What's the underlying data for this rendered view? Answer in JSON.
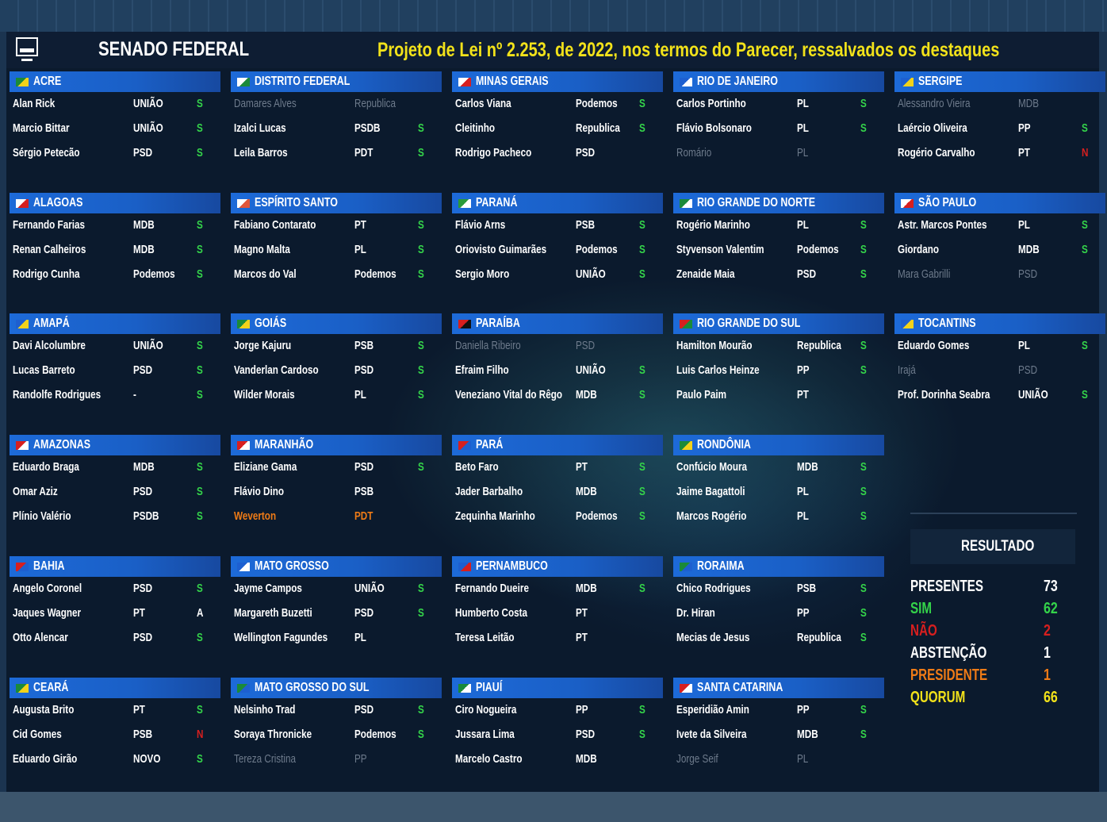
{
  "header": {
    "app_title": "SENADO FEDERAL",
    "bill": "Projeto de Lei nº 2.253, de 2022, nos termos do Parecer, ressalvados os destaques"
  },
  "colors": {
    "vote_yes": "#34d34a",
    "vote_no": "#d71f1f",
    "absent": "#6e7b8c",
    "president": "#ef7b16",
    "quorum": "#f2e21a",
    "state_bar": "#1d6ad8"
  },
  "states": [
    {
      "name": "ACRE",
      "senators": [
        {
          "name": "Alan Rick",
          "party": "UNIÃO",
          "vote": "S",
          "status": "present"
        },
        {
          "name": "Marcio Bittar",
          "party": "UNIÃO",
          "vote": "S",
          "status": "present"
        },
        {
          "name": "Sérgio Petecão",
          "party": "PSD",
          "vote": "S",
          "status": "present"
        }
      ]
    },
    {
      "name": "DISTRITO FEDERAL",
      "senators": [
        {
          "name": "Damares Alves",
          "party": "Republica",
          "vote": "",
          "status": "absent"
        },
        {
          "name": "Izalci Lucas",
          "party": "PSDB",
          "vote": "S",
          "status": "present"
        },
        {
          "name": "Leila Barros",
          "party": "PDT",
          "vote": "S",
          "status": "present"
        }
      ]
    },
    {
      "name": "MINAS GERAIS",
      "senators": [
        {
          "name": "Carlos Viana",
          "party": "Podemos",
          "vote": "S",
          "status": "present"
        },
        {
          "name": "Cleitinho",
          "party": "Republica",
          "vote": "S",
          "status": "present"
        },
        {
          "name": "Rodrigo Pacheco",
          "party": "PSD",
          "vote": "",
          "status": "present"
        }
      ]
    },
    {
      "name": "RIO DE JANEIRO",
      "senators": [
        {
          "name": "Carlos Portinho",
          "party": "PL",
          "vote": "S",
          "status": "present"
        },
        {
          "name": "Flávio Bolsonaro",
          "party": "PL",
          "vote": "S",
          "status": "present"
        },
        {
          "name": "Romário",
          "party": "PL",
          "vote": "",
          "status": "absent"
        }
      ]
    },
    {
      "name": "SERGIPE",
      "senators": [
        {
          "name": "Alessandro Vieira",
          "party": "MDB",
          "vote": "",
          "status": "absent"
        },
        {
          "name": "Laércio Oliveira",
          "party": "PP",
          "vote": "S",
          "status": "present"
        },
        {
          "name": "Rogério Carvalho",
          "party": "PT",
          "vote": "N",
          "status": "present"
        }
      ]
    },
    {
      "name": "ALAGOAS",
      "senators": [
        {
          "name": "Fernando Farias",
          "party": "MDB",
          "vote": "S",
          "status": "present"
        },
        {
          "name": "Renan Calheiros",
          "party": "MDB",
          "vote": "S",
          "status": "present"
        },
        {
          "name": "Rodrigo Cunha",
          "party": "Podemos",
          "vote": "S",
          "status": "present"
        }
      ]
    },
    {
      "name": "ESPÍRITO SANTO",
      "senators": [
        {
          "name": "Fabiano Contarato",
          "party": "PT",
          "vote": "S",
          "status": "present"
        },
        {
          "name": "Magno Malta",
          "party": "PL",
          "vote": "S",
          "status": "present"
        },
        {
          "name": "Marcos do Val",
          "party": "Podemos",
          "vote": "S",
          "status": "present"
        }
      ]
    },
    {
      "name": "PARANÁ",
      "senators": [
        {
          "name": "Flávio Arns",
          "party": "PSB",
          "vote": "S",
          "status": "present"
        },
        {
          "name": "Oriovisto Guimarães",
          "party": "Podemos",
          "vote": "S",
          "status": "present"
        },
        {
          "name": "Sergio Moro",
          "party": "UNIÃO",
          "vote": "S",
          "status": "present"
        }
      ]
    },
    {
      "name": "RIO GRANDE DO NORTE",
      "senators": [
        {
          "name": "Rogério Marinho",
          "party": "PL",
          "vote": "S",
          "status": "present"
        },
        {
          "name": "Styvenson Valentim",
          "party": "Podemos",
          "vote": "S",
          "status": "present"
        },
        {
          "name": "Zenaide Maia",
          "party": "PSD",
          "vote": "S",
          "status": "present"
        }
      ]
    },
    {
      "name": "SÃO PAULO",
      "senators": [
        {
          "name": "Astr. Marcos Pontes",
          "party": "PL",
          "vote": "S",
          "status": "present"
        },
        {
          "name": "Giordano",
          "party": "MDB",
          "vote": "S",
          "status": "present"
        },
        {
          "name": "Mara Gabrilli",
          "party": "PSD",
          "vote": "",
          "status": "absent"
        }
      ]
    },
    {
      "name": "AMAPÁ",
      "senators": [
        {
          "name": "Davi Alcolumbre",
          "party": "UNIÃO",
          "vote": "S",
          "status": "present"
        },
        {
          "name": "Lucas Barreto",
          "party": "PSD",
          "vote": "S",
          "status": "present"
        },
        {
          "name": "Randolfe Rodrigues",
          "party": "-",
          "vote": "S",
          "status": "present"
        }
      ]
    },
    {
      "name": "GOIÁS",
      "senators": [
        {
          "name": "Jorge Kajuru",
          "party": "PSB",
          "vote": "S",
          "status": "present"
        },
        {
          "name": "Vanderlan Cardoso",
          "party": "PSD",
          "vote": "S",
          "status": "present"
        },
        {
          "name": "Wilder Morais",
          "party": "PL",
          "vote": "S",
          "status": "present"
        }
      ]
    },
    {
      "name": "PARAÍBA",
      "senators": [
        {
          "name": "Daniella Ribeiro",
          "party": "PSD",
          "vote": "",
          "status": "absent"
        },
        {
          "name": "Efraim Filho",
          "party": "UNIÃO",
          "vote": "S",
          "status": "present"
        },
        {
          "name": "Veneziano Vital do Rêgo",
          "party": "MDB",
          "vote": "S",
          "status": "present"
        }
      ]
    },
    {
      "name": "RIO GRANDE DO SUL",
      "senators": [
        {
          "name": "Hamilton Mourão",
          "party": "Republica",
          "vote": "S",
          "status": "present"
        },
        {
          "name": "Luis Carlos Heinze",
          "party": "PP",
          "vote": "S",
          "status": "present"
        },
        {
          "name": "Paulo Paim",
          "party": "PT",
          "vote": "",
          "status": "present"
        }
      ]
    },
    {
      "name": "TOCANTINS",
      "senators": [
        {
          "name": "Eduardo Gomes",
          "party": "PL",
          "vote": "S",
          "status": "present"
        },
        {
          "name": "Irajá",
          "party": "PSD",
          "vote": "",
          "status": "absent"
        },
        {
          "name": "Prof. Dorinha Seabra",
          "party": "UNIÃO",
          "vote": "S",
          "status": "present"
        }
      ]
    },
    {
      "name": "AMAZONAS",
      "senators": [
        {
          "name": "Eduardo Braga",
          "party": "MDB",
          "vote": "S",
          "status": "present"
        },
        {
          "name": "Omar Aziz",
          "party": "PSD",
          "vote": "S",
          "status": "present"
        },
        {
          "name": "Plínio Valério",
          "party": "PSDB",
          "vote": "S",
          "status": "present"
        }
      ]
    },
    {
      "name": "MARANHÃO",
      "senators": [
        {
          "name": "Eliziane Gama",
          "party": "PSD",
          "vote": "S",
          "status": "present"
        },
        {
          "name": "Flávio Dino",
          "party": "PSB",
          "vote": "",
          "status": "present"
        },
        {
          "name": "Weverton",
          "party": "PDT",
          "vote": "",
          "status": "president"
        }
      ]
    },
    {
      "name": "PARÁ",
      "senators": [
        {
          "name": "Beto Faro",
          "party": "PT",
          "vote": "S",
          "status": "present"
        },
        {
          "name": "Jader Barbalho",
          "party": "MDB",
          "vote": "S",
          "status": "present"
        },
        {
          "name": "Zequinha Marinho",
          "party": "Podemos",
          "vote": "S",
          "status": "present"
        }
      ]
    },
    {
      "name": "RONDÔNIA",
      "senators": [
        {
          "name": "Confúcio Moura",
          "party": "MDB",
          "vote": "S",
          "status": "present"
        },
        {
          "name": "Jaime Bagattoli",
          "party": "PL",
          "vote": "S",
          "status": "present"
        },
        {
          "name": "Marcos Rogério",
          "party": "PL",
          "vote": "S",
          "status": "present"
        }
      ]
    },
    {
      "name": "BAHIA",
      "senators": [
        {
          "name": "Angelo Coronel",
          "party": "PSD",
          "vote": "S",
          "status": "present"
        },
        {
          "name": "Jaques Wagner",
          "party": "PT",
          "vote": "A",
          "status": "present"
        },
        {
          "name": "Otto Alencar",
          "party": "PSD",
          "vote": "S",
          "status": "present"
        }
      ]
    },
    {
      "name": "MATO GROSSO",
      "senators": [
        {
          "name": "Jayme Campos",
          "party": "UNIÃO",
          "vote": "S",
          "status": "present"
        },
        {
          "name": "Margareth Buzetti",
          "party": "PSD",
          "vote": "S",
          "status": "present"
        },
        {
          "name": "Wellington Fagundes",
          "party": "PL",
          "vote": "",
          "status": "present"
        }
      ]
    },
    {
      "name": "PERNAMBUCO",
      "senators": [
        {
          "name": "Fernando Dueire",
          "party": "MDB",
          "vote": "S",
          "status": "present"
        },
        {
          "name": "Humberto Costa",
          "party": "PT",
          "vote": "",
          "status": "present"
        },
        {
          "name": "Teresa Leitão",
          "party": "PT",
          "vote": "",
          "status": "present"
        }
      ]
    },
    {
      "name": "RORAIMA",
      "senators": [
        {
          "name": "Chico Rodrigues",
          "party": "PSB",
          "vote": "S",
          "status": "present"
        },
        {
          "name": "Dr. Hiran",
          "party": "PP",
          "vote": "S",
          "status": "present"
        },
        {
          "name": "Mecias de Jesus",
          "party": "Republica",
          "vote": "S",
          "status": "present"
        }
      ]
    },
    {
      "name": "CEARÁ",
      "senators": [
        {
          "name": "Augusta Brito",
          "party": "PT",
          "vote": "S",
          "status": "present"
        },
        {
          "name": "Cid Gomes",
          "party": "PSB",
          "vote": "N",
          "status": "present"
        },
        {
          "name": "Eduardo Girão",
          "party": "NOVO",
          "vote": "S",
          "status": "present"
        }
      ]
    },
    {
      "name": "MATO GROSSO DO SUL",
      "senators": [
        {
          "name": "Nelsinho Trad",
          "party": "PSD",
          "vote": "S",
          "status": "present"
        },
        {
          "name": "Soraya Thronicke",
          "party": "Podemos",
          "vote": "S",
          "status": "present"
        },
        {
          "name": "Tereza Cristina",
          "party": "PP",
          "vote": "",
          "status": "absent"
        }
      ]
    },
    {
      "name": "PIAUÍ",
      "senators": [
        {
          "name": "Ciro Nogueira",
          "party": "PP",
          "vote": "S",
          "status": "present"
        },
        {
          "name": "Jussara Lima",
          "party": "PSD",
          "vote": "S",
          "status": "present"
        },
        {
          "name": "Marcelo Castro",
          "party": "MDB",
          "vote": "",
          "status": "present"
        }
      ]
    },
    {
      "name": "SANTA CATARINA",
      "senators": [
        {
          "name": "Esperidião Amin",
          "party": "PP",
          "vote": "S",
          "status": "present"
        },
        {
          "name": "Ivete da Silveira",
          "party": "MDB",
          "vote": "S",
          "status": "present"
        },
        {
          "name": "Jorge Seif",
          "party": "PL",
          "vote": "",
          "status": "absent"
        }
      ]
    }
  ],
  "result": {
    "title": "RESULTADO",
    "rows": [
      {
        "label": "PRESENTES",
        "value": "73",
        "label_color": "#ffffff",
        "value_color": "#ffffff"
      },
      {
        "label": "SIM",
        "value": "62",
        "label_color": "#34d34a",
        "value_color": "#34d34a"
      },
      {
        "label": "NÃO",
        "value": "2",
        "label_color": "#d71f1f",
        "value_color": "#d71f1f"
      },
      {
        "label": "ABSTENÇÃO",
        "value": "1",
        "label_color": "#ffffff",
        "value_color": "#ffffff"
      },
      {
        "label": "PRESIDENTE",
        "value": "1",
        "label_color": "#ef7b16",
        "value_color": "#ef7b16"
      },
      {
        "label": "QUORUM",
        "value": "66",
        "label_color": "#f2e21a",
        "value_color": "#f2e21a"
      }
    ]
  }
}
